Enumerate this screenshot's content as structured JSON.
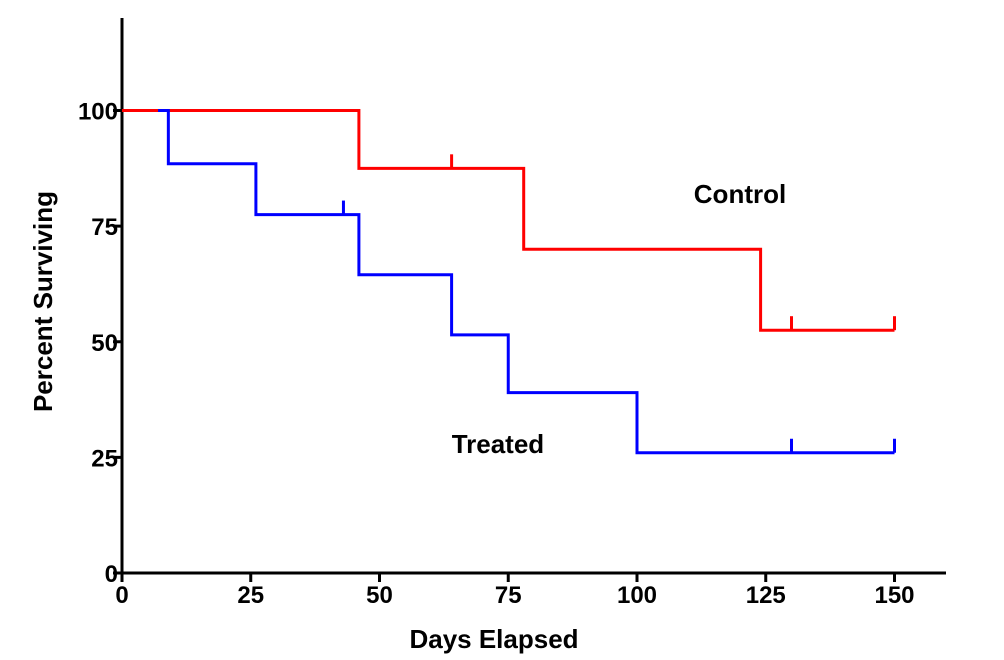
{
  "chart_data": {
    "type": "line",
    "step": "post",
    "xlabel": "Days Elapsed",
    "ylabel": "Percent Surviving",
    "xlim": [
      0,
      160
    ],
    "ylim": [
      0,
      120
    ],
    "x_ticks": [
      0,
      25,
      50,
      75,
      100,
      125,
      150
    ],
    "y_ticks": [
      0,
      25,
      50,
      75,
      100
    ],
    "grid": false,
    "series": [
      {
        "name": "Control",
        "color": "#ff0000",
        "x": [
          0,
          46,
          78,
          124,
          150
        ],
        "y": [
          100,
          87.5,
          70,
          52.5,
          52.5
        ],
        "censored": [
          {
            "x": 64,
            "y": 87.5
          },
          {
            "x": 130,
            "y": 52.5
          },
          {
            "x": 150,
            "y": 52.5
          }
        ]
      },
      {
        "name": "Treated",
        "color": "#0000ff",
        "x": [
          7,
          9,
          26,
          46,
          64,
          75,
          100,
          150
        ],
        "y": [
          100,
          88.5,
          77.5,
          64.5,
          51.5,
          39,
          26,
          26
        ],
        "censored": [
          {
            "x": 43,
            "y": 77.5
          },
          {
            "x": 130,
            "y": 26
          },
          {
            "x": 150,
            "y": 26
          }
        ]
      }
    ],
    "annotations": [
      {
        "text": "Control",
        "x": 120,
        "y": 80
      },
      {
        "text": "Treated",
        "x": 73,
        "y": 26
      }
    ]
  }
}
